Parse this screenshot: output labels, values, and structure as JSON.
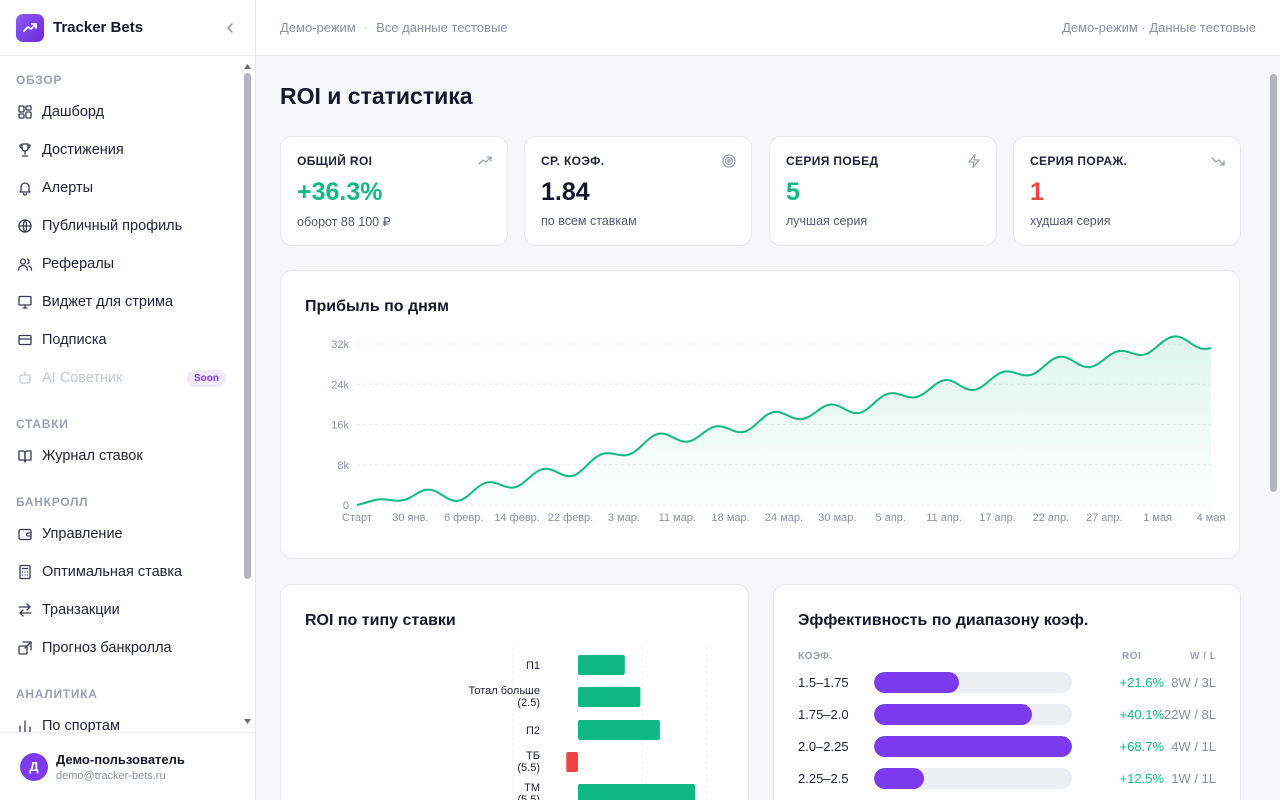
{
  "app": {
    "name": "Tracker Bets",
    "accent": "#7c3aed",
    "positive": "#10b981",
    "negative": "#ef4444"
  },
  "topbar": {
    "crumb1": "Демо-режим",
    "crumb2": "Все данные тестовые",
    "right": "Демо-режим · Данные тестовые"
  },
  "sidebar": {
    "sections": [
      {
        "title": "ОБЗОР",
        "items": [
          {
            "label": "Дашборд",
            "icon": "dashboard-icon"
          },
          {
            "label": "Достижения",
            "icon": "trophy-icon"
          },
          {
            "label": "Алерты",
            "icon": "bell-icon"
          },
          {
            "label": "Публичный профиль",
            "icon": "globe-icon"
          },
          {
            "label": "Рефералы",
            "icon": "users-icon"
          },
          {
            "label": "Виджет для стрима",
            "icon": "monitor-icon"
          },
          {
            "label": "Подписка",
            "icon": "card-icon"
          },
          {
            "label": "AI Советник",
            "icon": "bot-icon",
            "badge": "Soon",
            "disabled": true
          }
        ]
      },
      {
        "title": "СТАВКИ",
        "items": [
          {
            "label": "Журнал ставок",
            "icon": "book-icon"
          }
        ]
      },
      {
        "title": "БАНКРОЛЛ",
        "items": [
          {
            "label": "Управление",
            "icon": "wallet-icon"
          },
          {
            "label": "Оптимальная ставка",
            "icon": "calculator-icon"
          },
          {
            "label": "Транзакции",
            "icon": "transfer-icon"
          },
          {
            "label": "Прогноз банкролла",
            "icon": "forecast-icon"
          }
        ]
      },
      {
        "title": "АНАЛИТИКА",
        "items": [
          {
            "label": "По спортам",
            "icon": "bar-chart-icon"
          }
        ]
      }
    ]
  },
  "user": {
    "initial": "Д",
    "name": "Демо-пользователь",
    "email": "demo@tracker-bets.ru"
  },
  "page": {
    "title": "ROI и статистика"
  },
  "stats": [
    {
      "label": "ОБЩИЙ ROI",
      "value": "+36.3%",
      "sub": "оборот 88 100 ₽",
      "icon": "trending-up-icon",
      "color": "#10b981"
    },
    {
      "label": "СР. КОЭФ.",
      "value": "1.84",
      "sub": "по всем ставкам",
      "icon": "target-icon",
      "color": "#17172b"
    },
    {
      "label": "СЕРИЯ ПОБЕД",
      "value": "5",
      "sub": "лучшая серия",
      "icon": "zap-icon",
      "color": "#10b981"
    },
    {
      "label": "СЕРИЯ ПОРАЖ.",
      "value": "1",
      "sub": "худшая серия",
      "icon": "trending-down-icon",
      "color": "#ef4444"
    }
  ],
  "profit_chart": {
    "title": "Прибыль по дням",
    "yticks": [
      "0",
      "8k",
      "16k",
      "24k",
      "32k"
    ],
    "xticks": [
      "Старт",
      "30 янв.",
      "6 февр.",
      "14 февр.",
      "22 февр.",
      "3 мар.",
      "11 мар.",
      "18 мар.",
      "24 мар.",
      "30 мар.",
      "5 апр.",
      "11 апр.",
      "17 апр.",
      "22 апр.",
      "27 апр.",
      "1 мая",
      "4 мая"
    ]
  },
  "roi_chart": {
    "title": "ROI по типу ставки"
  },
  "odds_table": {
    "title": "Эффективность по диапазону коэф.",
    "headers": {
      "range": "КОЭФ.",
      "roi": "ROI",
      "wl": "W / L"
    },
    "rows": [
      {
        "range": "1.5–1.75",
        "fill": 0.43,
        "roi": "+21.6%",
        "wl": "8W / 3L"
      },
      {
        "range": "1.75–2.0",
        "fill": 0.8,
        "roi": "+40.1%",
        "wl": "22W / 8L"
      },
      {
        "range": "2.0–2.25",
        "fill": 1.0,
        "roi": "+68.7%",
        "wl": "4W / 1L"
      },
      {
        "range": "2.25–2.5",
        "fill": 0.25,
        "roi": "+12.5%",
        "wl": "1W / 1L"
      }
    ]
  },
  "chart_data": [
    {
      "type": "area",
      "title": "Прибыль по дням",
      "xlabel": "",
      "ylabel": "",
      "ylim": [
        0,
        32000
      ],
      "grid": true,
      "categories": [
        "Старт",
        "30 янв.",
        "6 февр.",
        "14 февр.",
        "22 февр.",
        "3 мар.",
        "11 мар.",
        "18 мар.",
        "24 мар.",
        "30 мар.",
        "5 апр.",
        "11 апр.",
        "17 апр.",
        "22 апр.",
        "27 апр.",
        "1 мая",
        "4 мая"
      ],
      "values": [
        0,
        1700,
        2600,
        4300,
        7200,
        10800,
        13400,
        15500,
        17200,
        19300,
        20900,
        23500,
        25300,
        27600,
        29200,
        31800,
        32000
      ]
    },
    {
      "type": "bar",
      "title": "ROI по типу ставки",
      "orientation": "horizontal",
      "categories": [
        "П1",
        "Тотал больше (2.5)",
        "П2",
        "ТБ (5.5)",
        "ТМ (5.5)"
      ],
      "values": [
        12,
        16,
        21,
        -3,
        30
      ]
    }
  ]
}
